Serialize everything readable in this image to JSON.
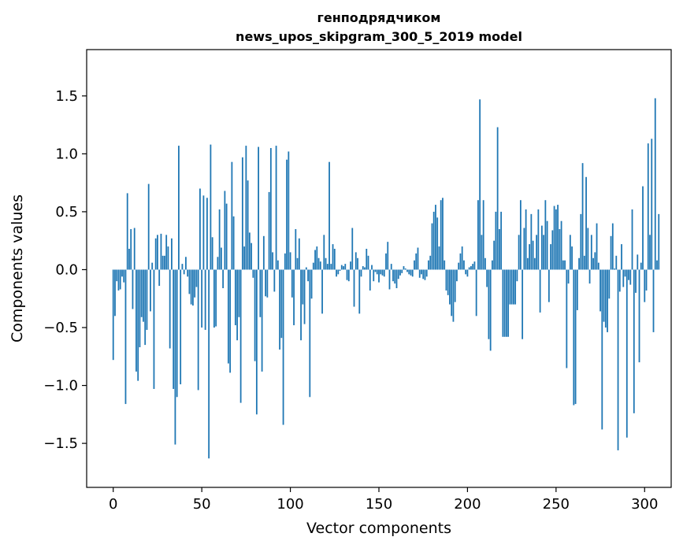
{
  "chart_data": {
    "type": "bar",
    "title": [
      "генподрядчиком",
      "news_upos_skipgram_300_5_2019 model"
    ],
    "xlabel": "Vector components",
    "ylabel": "Components values",
    "xlim": [
      -15,
      315
    ],
    "ylim": [
      -1.88,
      1.9
    ],
    "xticks": [
      0,
      50,
      100,
      150,
      200,
      250,
      300
    ],
    "yticks": [
      -1.5,
      -1.0,
      -0.5,
      0.0,
      0.5,
      1.0,
      1.5
    ],
    "ytick_labels": [
      "−1.5",
      "−1.0",
      "−0.5",
      "0.0",
      "0.5",
      "1.0",
      "1.5"
    ],
    "bar_color": "#1f77b4",
    "grid": false,
    "legend": "none",
    "values": [
      -0.78,
      -0.4,
      -0.1,
      -0.18,
      -0.17,
      -0.06,
      -0.11,
      -1.16,
      0.66,
      0.18,
      0.35,
      -0.34,
      0.36,
      -0.88,
      -0.96,
      -0.67,
      -0.41,
      -0.45,
      -0.65,
      -0.52,
      0.74,
      -0.36,
      0.06,
      -1.03,
      0.27,
      0.3,
      -0.14,
      0.31,
      0.12,
      0.12,
      0.3,
      0.2,
      -0.68,
      0.27,
      -1.03,
      -1.51,
      -1.1,
      1.07,
      -0.99,
      0.05,
      -0.04,
      0.11,
      -0.06,
      -0.21,
      -0.3,
      -0.31,
      -0.24,
      -0.15,
      -1.04,
      0.7,
      -0.5,
      0.64,
      -0.52,
      0.62,
      -1.63,
      1.08,
      0.28,
      -0.5,
      -0.49,
      0.11,
      0.52,
      0.19,
      -0.16,
      0.68,
      0.57,
      -0.81,
      -0.89,
      0.93,
      0.46,
      -0.48,
      -0.61,
      -0.41,
      -1.15,
      0.97,
      0.2,
      1.07,
      0.77,
      0.32,
      0.23,
      -0.07,
      -0.79,
      -1.25,
      1.06,
      -0.41,
      -0.88,
      0.29,
      -0.23,
      -0.24,
      0.67,
      1.05,
      0.15,
      -0.19,
      1.07,
      0.08,
      -0.69,
      -0.59,
      -1.34,
      0.14,
      0.95,
      1.02,
      0.15,
      -0.24,
      -0.48,
      0.35,
      0.1,
      0.27,
      -0.61,
      -0.3,
      -0.47,
      0.02,
      -0.1,
      -1.1,
      -0.25,
      0.06,
      0.17,
      0.2,
      0.1,
      0.07,
      -0.38,
      0.3,
      0.1,
      0.05,
      0.93,
      0.05,
      0.22,
      0.18,
      -0.06,
      -0.04,
      -0.01,
      0.04,
      0.03,
      0.05,
      -0.09,
      -0.1,
      0.07,
      0.36,
      -0.32,
      0.15,
      0.1,
      -0.38,
      -0.06,
      0.03,
      0.02,
      0.18,
      0.12,
      -0.18,
      0.04,
      -0.1,
      -0.02,
      -0.04,
      -0.11,
      -0.04,
      -0.05,
      -0.06,
      0.14,
      0.24,
      -0.17,
      0.05,
      -0.1,
      -0.12,
      -0.16,
      -0.08,
      -0.05,
      -0.03,
      0.03,
      0.01,
      -0.02,
      -0.04,
      -0.05,
      -0.06,
      0.08,
      0.14,
      0.19,
      -0.07,
      -0.04,
      -0.08,
      -0.09,
      -0.06,
      0.08,
      0.12,
      0.4,
      0.5,
      0.56,
      0.45,
      0.2,
      0.6,
      0.62,
      0.08,
      -0.18,
      -0.22,
      -0.3,
      -0.4,
      -0.45,
      -0.28,
      -0.1,
      0.06,
      0.14,
      0.2,
      0.08,
      -0.04,
      -0.06,
      0.02,
      0.03,
      0.05,
      0.07,
      -0.4,
      0.6,
      1.47,
      0.3,
      0.6,
      0.1,
      -0.15,
      -0.6,
      -0.7,
      0.08,
      0.25,
      0.5,
      1.23,
      0.35,
      0.5,
      -0.58,
      -0.58,
      -0.58,
      -0.58,
      -0.3,
      -0.3,
      -0.3,
      -0.3,
      -0.1,
      0.3,
      0.6,
      -0.6,
      0.36,
      0.52,
      0.1,
      0.22,
      0.48,
      0.25,
      0.1,
      0.3,
      0.52,
      -0.37,
      0.38,
      0.3,
      0.6,
      0.42,
      -0.28,
      0.22,
      0.34,
      0.55,
      0.52,
      0.56,
      0.35,
      0.42,
      0.08,
      0.08,
      -0.85,
      -0.12,
      0.3,
      0.2,
      -1.17,
      -1.16,
      -0.35,
      0.1,
      0.48,
      0.92,
      0.12,
      0.8,
      0.36,
      -0.12,
      0.3,
      0.1,
      0.15,
      0.4,
      0.06,
      -0.36,
      -1.38,
      -0.45,
      -0.5,
      -0.54,
      -0.25,
      0.29,
      0.4,
      0.01,
      0.12,
      -1.56,
      -0.19,
      0.22,
      -0.15,
      -0.06,
      -1.45,
      -0.09,
      -0.13,
      0.52,
      -1.24,
      -0.2,
      0.13,
      -0.8,
      0.06,
      0.72,
      -0.28,
      -0.18,
      1.09,
      0.3,
      1.13,
      -0.54,
      1.48,
      0.08,
      0.48
    ]
  }
}
